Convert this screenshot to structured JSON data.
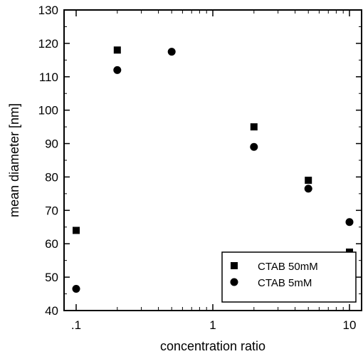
{
  "chart_data": {
    "type": "scatter",
    "title": "",
    "xlabel": "concentration ratio",
    "ylabel": "mean diameter [nm]",
    "x_scale": "log",
    "xlim": [
      0.1,
      10
    ],
    "ylim": [
      40,
      130
    ],
    "x_ticks": [
      0.1,
      1,
      10
    ],
    "x_tick_labels": [
      ".1",
      "1",
      "10"
    ],
    "y_ticks": [
      40,
      50,
      60,
      70,
      80,
      90,
      100,
      110,
      120,
      130
    ],
    "grid": false,
    "legend_position": "bottom-right",
    "series": [
      {
        "name": "CTAB 50mM",
        "marker": "square",
        "points": [
          {
            "x": 0.1,
            "y": 64
          },
          {
            "x": 0.2,
            "y": 118
          },
          {
            "x": 2,
            "y": 95
          },
          {
            "x": 5,
            "y": 79
          },
          {
            "x": 10,
            "y": 57.5
          }
        ]
      },
      {
        "name": "CTAB 5mM",
        "marker": "circle",
        "points": [
          {
            "x": 0.1,
            "y": 46.5
          },
          {
            "x": 0.2,
            "y": 112
          },
          {
            "x": 0.5,
            "y": 117.5
          },
          {
            "x": 2,
            "y": 89
          },
          {
            "x": 5,
            "y": 76.5
          },
          {
            "x": 10,
            "y": 66.5
          }
        ]
      }
    ]
  }
}
